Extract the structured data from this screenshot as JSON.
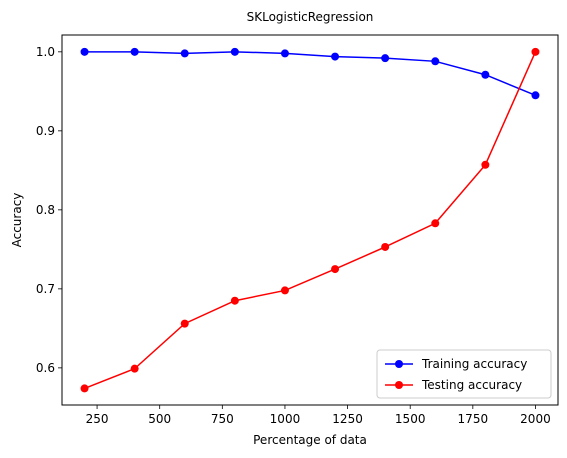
{
  "chart_data": {
    "type": "line",
    "title": "SKLogisticRegression",
    "xlabel": "Percentage of data",
    "ylabel": "Accuracy",
    "x": [
      200,
      400,
      600,
      800,
      1000,
      1200,
      1400,
      1600,
      1800,
      2000
    ],
    "series": [
      {
        "name": "Training accuracy",
        "color": "#0000ff",
        "marker": "circle",
        "values": [
          1.0,
          1.0,
          0.998,
          1.0,
          0.998,
          0.994,
          0.992,
          0.988,
          0.971,
          0.945
        ]
      },
      {
        "name": "Testing accuracy",
        "color": "#ff0000",
        "marker": "circle",
        "values": [
          0.574,
          0.599,
          0.656,
          0.685,
          0.698,
          0.725,
          0.753,
          0.783,
          0.857,
          1.0
        ]
      }
    ],
    "xlim": [
      110,
      2090
    ],
    "ylim": [
      0.553,
      1.0213
    ],
    "xticks": [
      250,
      500,
      750,
      1000,
      1250,
      1500,
      1750,
      2000
    ],
    "yticks": [
      0.6,
      0.7,
      0.8,
      0.9,
      1.0
    ],
    "ytick_labels": [
      "0.6",
      "0.7",
      "0.8",
      "0.9",
      "1.0"
    ],
    "grid": false,
    "legend_position": "bottom-right"
  }
}
